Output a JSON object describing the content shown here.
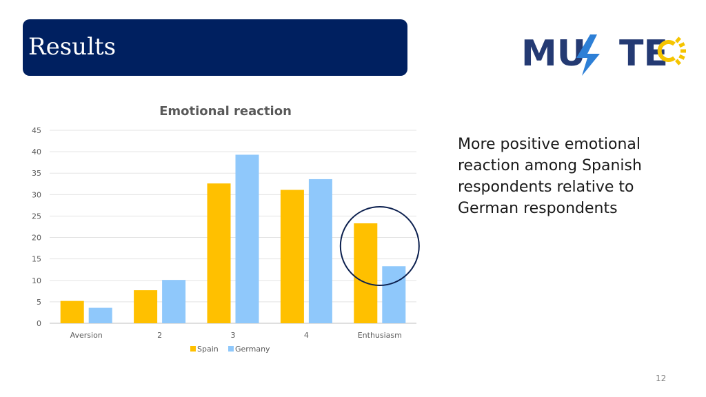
{
  "header": {
    "title": "Results"
  },
  "logo": {
    "text": "MUSTEC",
    "accent_color": "#f5c400",
    "brand_color": "#243a73"
  },
  "chart_data": {
    "type": "bar",
    "title": "Emotional reaction",
    "categories": [
      "Aversion",
      "2",
      "3",
      "4",
      "Enthusiasm"
    ],
    "series": [
      {
        "name": "Spain",
        "color": "#ffc000",
        "values": [
          5.2,
          7.7,
          32.6,
          31.1,
          23.3
        ]
      },
      {
        "name": "Germany",
        "color": "#8fc8fb",
        "values": [
          3.6,
          10.1,
          39.3,
          33.6,
          13.3
        ]
      }
    ],
    "ylim": [
      0,
      45
    ],
    "yticks": [
      0,
      5,
      10,
      15,
      20,
      25,
      30,
      35,
      40,
      45
    ],
    "grid": true,
    "legend_position": "bottom",
    "highlight": {
      "category": "Enthusiasm",
      "shape": "circle",
      "color": "#0b1f4e"
    }
  },
  "side_text": "More positive emotional reaction among Spanish respondents relative to German respondents",
  "page_number": "12"
}
